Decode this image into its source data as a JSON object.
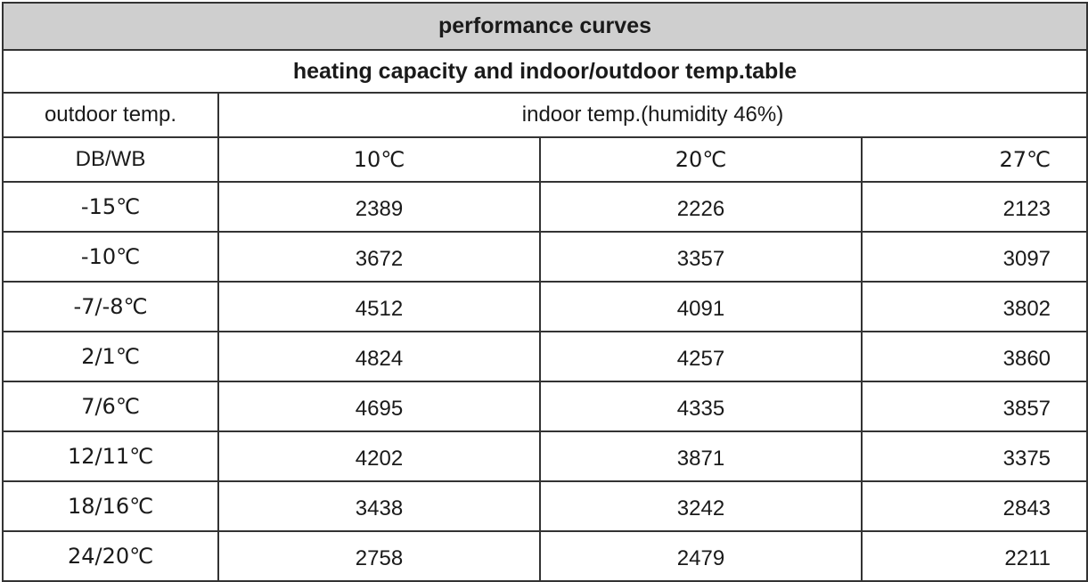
{
  "title": "performance curves",
  "subtitle": "heating capacity and indoor/outdoor temp.table",
  "header": {
    "outdoor_label": "outdoor temp.",
    "indoor_label": "indoor temp.(humidity 46%)",
    "db_wb_label": "DB/WB",
    "indoor_temps": [
      "10℃",
      "20℃",
      "27℃"
    ]
  },
  "rows": [
    {
      "outdoor": "-15℃",
      "values": [
        "2389",
        "2226",
        "2123"
      ]
    },
    {
      "outdoor": "-10℃",
      "values": [
        "3672",
        "3357",
        "3097"
      ]
    },
    {
      "outdoor": "-7/-8℃",
      "values": [
        "4512",
        "4091",
        "3802"
      ]
    },
    {
      "outdoor": "2/1℃",
      "values": [
        "4824",
        "4257",
        "3860"
      ]
    },
    {
      "outdoor": "7/6℃",
      "values": [
        "4695",
        "4335",
        "3857"
      ]
    },
    {
      "outdoor": "12/11℃",
      "values": [
        "4202",
        "3871",
        "3375"
      ]
    },
    {
      "outdoor": "18/16℃",
      "values": [
        "3438",
        "3242",
        "2843"
      ]
    },
    {
      "outdoor": "24/20℃",
      "values": [
        "2758",
        "2479",
        "2211"
      ]
    }
  ]
}
